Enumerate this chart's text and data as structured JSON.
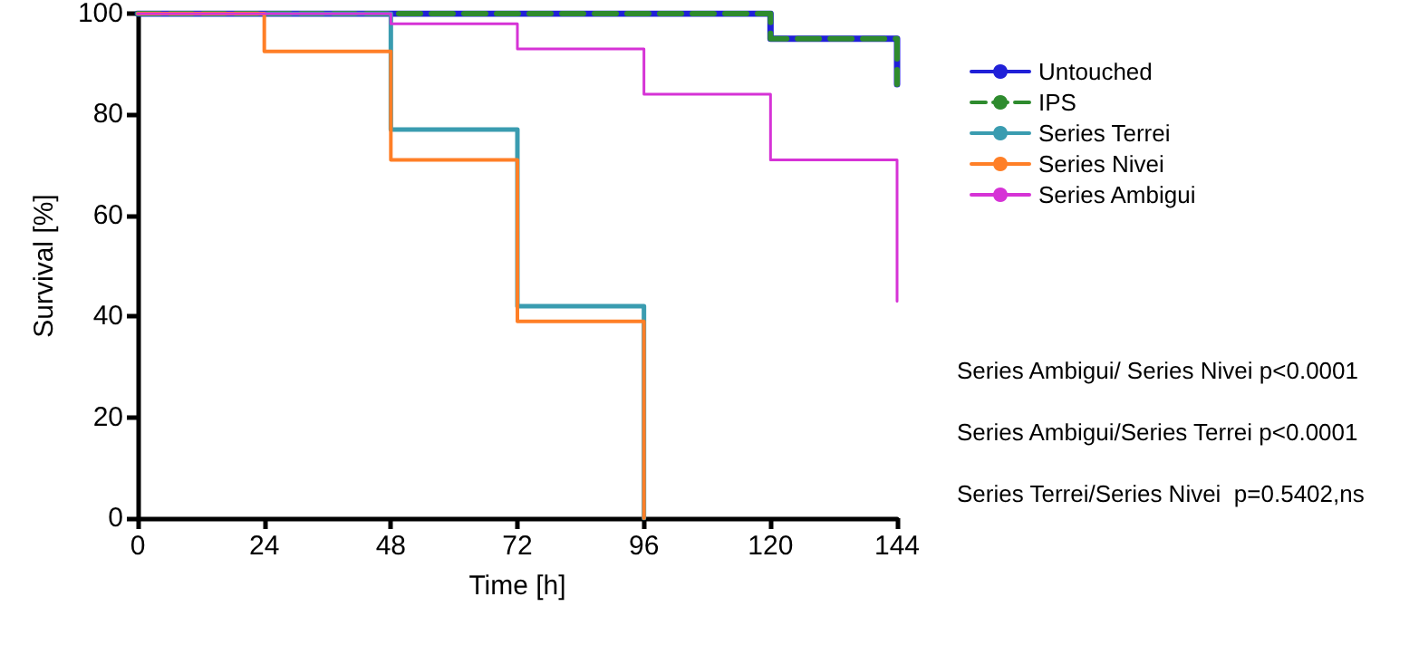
{
  "chart_data": {
    "type": "step",
    "xlabel": "Time [h]",
    "ylabel": "Survival [%]",
    "xlim": [
      0,
      144
    ],
    "xticks": [
      0,
      24,
      48,
      72,
      96,
      120,
      144
    ],
    "ylim": [
      0,
      100
    ],
    "yticks": [
      0,
      20,
      40,
      60,
      80,
      100
    ],
    "grid": false,
    "legend": "right",
    "marker": "none",
    "series": [
      {
        "name": "Untouched",
        "color": "#2020d8",
        "x": [
          0,
          120,
          144
        ],
        "values": [
          100,
          95,
          86
        ]
      },
      {
        "name": "IPS",
        "color": "#2e8b2e",
        "line_style": "dashed",
        "x": [
          0,
          120,
          144
        ],
        "values": [
          100,
          95,
          86
        ]
      },
      {
        "name": "Series Terrei",
        "color": "#3a9cb0",
        "x": [
          0,
          48,
          72,
          96
        ],
        "values": [
          100,
          77,
          42,
          0
        ]
      },
      {
        "name": "Series Nivei",
        "color": "#ff7f27",
        "x": [
          0,
          24,
          48,
          72,
          96
        ],
        "values": [
          100,
          92.5,
          71,
          39,
          0
        ]
      },
      {
        "name": "Series Ambigui",
        "color": "#d633d6",
        "x": [
          0,
          48,
          72,
          96,
          120,
          144
        ],
        "values": [
          100,
          98,
          93,
          84,
          71,
          43
        ]
      }
    ],
    "annotations": [
      "Series Ambigui/ Series Nivei p<0.0001",
      "Series Ambigui/Series Terrei p<0.0001",
      "Series Terrei/Series Nivei  p=0.5402,ns"
    ]
  }
}
